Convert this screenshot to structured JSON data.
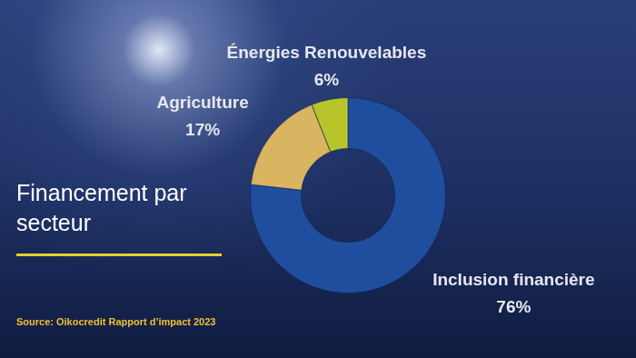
{
  "chart_data": {
    "type": "doughnut",
    "title": "Financement par secteur",
    "source": "Source: Oikocredit Rapport d’impact 2023",
    "categories": [
      "Inclusion financière",
      "Agriculture",
      "Énergies Renouvelables"
    ],
    "values": [
      76,
      17,
      6
    ],
    "value_labels": [
      "76%",
      "17%",
      "6%"
    ],
    "colors": [
      "#1f4e9e",
      "#d9b461",
      "#b8c42b"
    ],
    "data_labels": true
  }
}
